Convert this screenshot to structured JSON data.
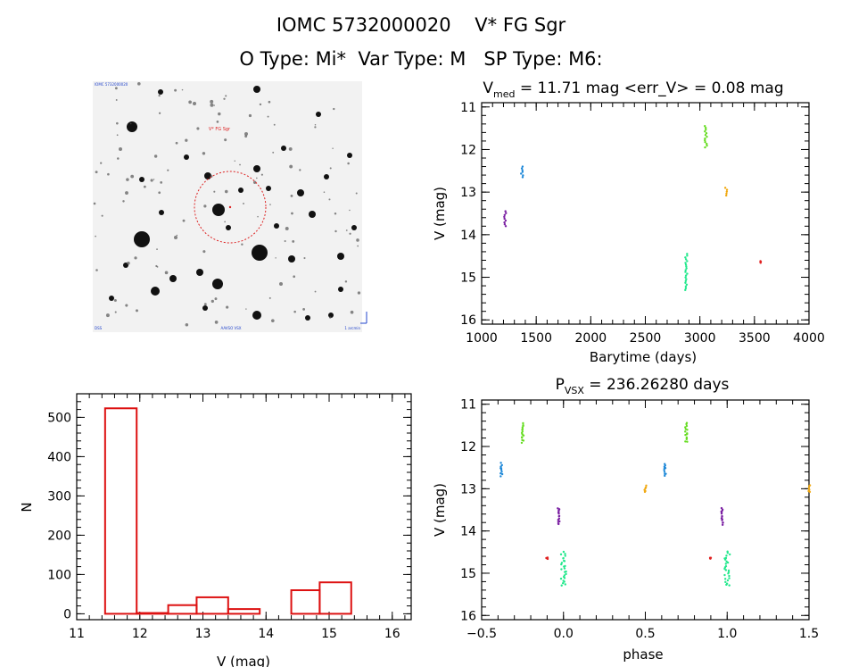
{
  "header": {
    "title_line1": "IOMC 5732000020    V* FG Sgr",
    "title_line2": "O Type: Mi*  Var Type: M   SP Type: M6:"
  },
  "finder": {
    "corner_tl": "IOMC 5732000020",
    "corner_bl": "DSS",
    "corner_bc": "AAVSO VSX",
    "corner_br": "1 arcmin",
    "target_label": "V* FG Sgr",
    "marker_color": "#dd2222",
    "compass_color": "#2244cc"
  },
  "chart_data": [
    {
      "id": "light-curve",
      "type": "scatter",
      "title_main": "V",
      "title_sub": "med",
      "title_rest": " = 11.71 mag <err_V> = 0.08 mag",
      "xlabel": "Barytime (days)",
      "ylabel": "V (mag)",
      "xlim": [
        1000,
        4000
      ],
      "ylim": [
        16.1,
        10.9
      ],
      "xticks": [
        1000,
        1500,
        2000,
        2500,
        3000,
        3500,
        4000
      ],
      "yticks": [
        11,
        12,
        13,
        14,
        15,
        16
      ],
      "series": [
        {
          "name": "segment-1",
          "color": "#7a1fa2",
          "x": 1215,
          "mag_range": [
            13.45,
            13.8
          ]
        },
        {
          "name": "segment-2",
          "color": "#1e88d8",
          "x": 1370,
          "mag_range": [
            12.4,
            12.65
          ]
        },
        {
          "name": "segment-3",
          "color": "#22e88c",
          "x": 2875,
          "mag_range": [
            14.45,
            15.3
          ]
        },
        {
          "name": "segment-4",
          "color": "#66dd22",
          "x": 3055,
          "mag_range": [
            11.45,
            11.95
          ]
        },
        {
          "name": "segment-5",
          "color": "#f0a810",
          "x": 3240,
          "mag_range": [
            12.9,
            13.08
          ]
        },
        {
          "name": "segment-6",
          "color": "#e02020",
          "x": 3560,
          "mag_range": [
            14.62,
            14.66
          ]
        }
      ]
    },
    {
      "id": "histogram",
      "type": "bar",
      "xlabel": "V (mag)",
      "ylabel": "N",
      "xlim": [
        11,
        16.3
      ],
      "ylim": [
        -15,
        560
      ],
      "xticks": [
        11,
        12,
        13,
        14,
        15,
        16
      ],
      "yticks": [
        0,
        100,
        200,
        300,
        400,
        500
      ],
      "bar_color": "#dd1111",
      "bins": [
        {
          "x0": 11.45,
          "x1": 11.95,
          "value": 523
        },
        {
          "x0": 11.95,
          "x1": 12.45,
          "value": 2
        },
        {
          "x0": 12.45,
          "x1": 12.9,
          "value": 22
        },
        {
          "x0": 12.9,
          "x1": 13.4,
          "value": 42
        },
        {
          "x0": 13.4,
          "x1": 13.9,
          "value": 12
        },
        {
          "x0": 13.9,
          "x1": 14.4,
          "value": 0
        },
        {
          "x0": 14.4,
          "x1": 14.85,
          "value": 60
        },
        {
          "x0": 14.85,
          "x1": 15.35,
          "value": 80
        }
      ]
    },
    {
      "id": "phase-plot",
      "type": "scatter",
      "title_main": "P",
      "title_sub": "VSX",
      "title_rest": " = 236.26280 days",
      "xlabel": "phase",
      "ylabel": "V (mag)",
      "xlim": [
        -0.5,
        1.5
      ],
      "ylim": [
        16.1,
        10.9
      ],
      "xticks": [
        -0.5,
        0.0,
        0.5,
        1.0,
        1.5
      ],
      "xtick_labels": [
        "−0.5",
        "0.0",
        "0.5",
        "1.0",
        "1.5"
      ],
      "yticks": [
        11,
        12,
        13,
        14,
        15,
        16
      ],
      "series": [
        {
          "name": "segment-1",
          "color": "#7a1fa2",
          "phase": -0.03,
          "mag_range": [
            13.45,
            13.85
          ]
        },
        {
          "name": "segment-2",
          "color": "#1e88d8",
          "phase": -0.38,
          "mag_range": [
            12.4,
            12.7
          ]
        },
        {
          "name": "segment-3",
          "color": "#22e88c",
          "phase": 0.0,
          "mag_range": [
            14.5,
            15.3
          ]
        },
        {
          "name": "segment-4",
          "color": "#66dd22",
          "phase": -0.25,
          "mag_range": [
            11.45,
            11.9
          ]
        },
        {
          "name": "segment-5",
          "color": "#f0a810",
          "phase": 0.5,
          "mag_range": [
            12.92,
            13.08
          ]
        },
        {
          "name": "segment-6",
          "color": "#e02020",
          "phase": -0.1,
          "mag_range": [
            14.63,
            14.67
          ]
        }
      ]
    }
  ]
}
